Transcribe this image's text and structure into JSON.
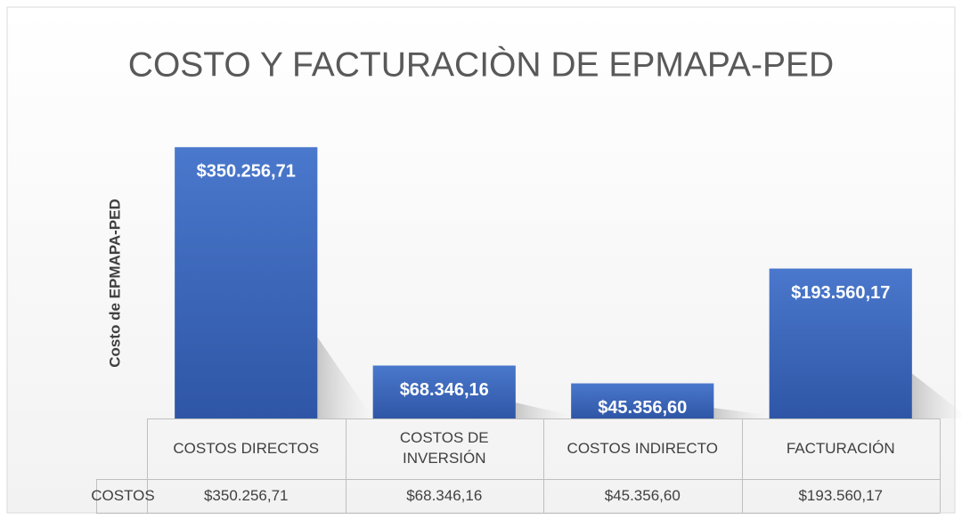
{
  "chart_data": {
    "type": "bar",
    "title": "COSTO Y FACTURACIÒN DE EPMAPA-PED",
    "y_label": "Costo de  EPMAPA-PED",
    "categories": [
      "COSTOS DIRECTOS",
      "COSTOS DE INVERSIÓN",
      "COSTOS INDIRECTO",
      "FACTURACIÓN"
    ],
    "series": [
      {
        "name": "COSTOS",
        "color": "#4472c4",
        "values": [
          350256.71,
          68346.16,
          45356.6,
          193560.17
        ],
        "value_labels": [
          "$350.256,71",
          "$68.346,16",
          "$45.356,60",
          "$193.560,17"
        ]
      }
    ],
    "ylim": [
      0,
      400000
    ],
    "data_table": true
  }
}
